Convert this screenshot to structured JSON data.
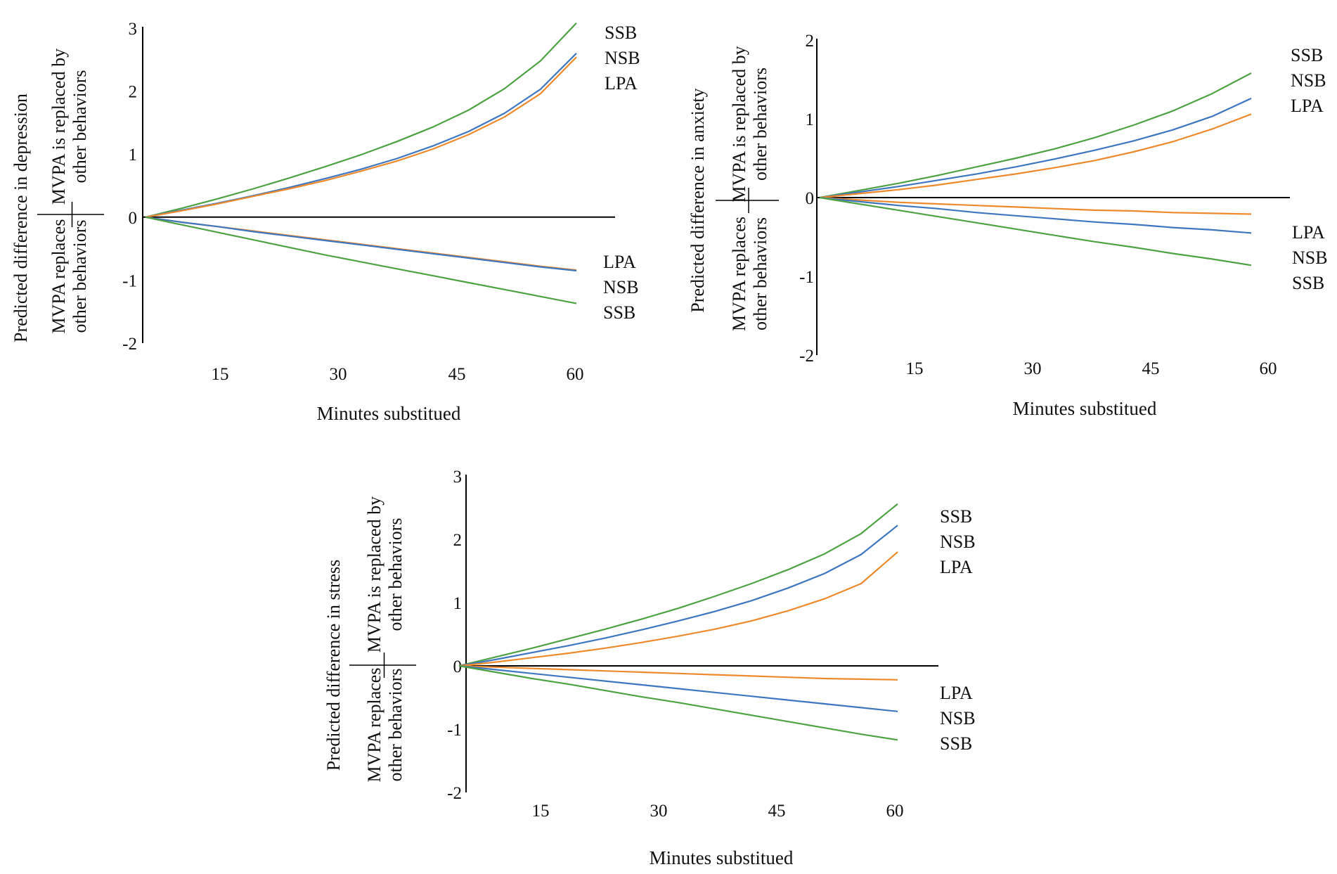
{
  "colors": {
    "SSB": "#4ea244",
    "NSB": "#3f76c0",
    "LPA": "#ee8a2e",
    "axis": "#000000"
  },
  "chart_data": [
    {
      "id": "depression",
      "type": "line",
      "ylabel": "Predicted difference in depression",
      "ylabel_upper": [
        "MVPA is replaced by",
        "other behaviors"
      ],
      "ylabel_lower": [
        "MVPA replaces",
        "other behaviors"
      ],
      "xlabel": "Minutes substitued",
      "ylim": [
        -2,
        3
      ],
      "xlim": [
        0,
        65
      ],
      "yticks": [
        "3",
        "2",
        "1",
        "0",
        "-1",
        "-2"
      ],
      "xticks": [
        "15",
        "30",
        "45",
        "60"
      ],
      "x": [
        0,
        5,
        10,
        15,
        20,
        25,
        30,
        35,
        40,
        45,
        50,
        55,
        60
      ],
      "series": [
        {
          "name": "SSB",
          "direction": "replaced",
          "values": [
            0,
            0.14,
            0.29,
            0.45,
            0.62,
            0.8,
            0.99,
            1.2,
            1.43,
            1.7,
            2.04,
            2.48,
            3.08
          ]
        },
        {
          "name": "NSB",
          "direction": "replaced",
          "values": [
            0,
            0.11,
            0.22,
            0.34,
            0.47,
            0.61,
            0.76,
            0.93,
            1.13,
            1.36,
            1.65,
            2.03,
            2.6
          ]
        },
        {
          "name": "LPA",
          "direction": "replaced",
          "values": [
            0,
            0.1,
            0.21,
            0.33,
            0.45,
            0.58,
            0.73,
            0.89,
            1.08,
            1.31,
            1.59,
            1.96,
            2.54
          ]
        },
        {
          "name": "LPA",
          "direction": "replaces",
          "values": [
            0,
            -0.08,
            -0.15,
            -0.22,
            -0.29,
            -0.36,
            -0.43,
            -0.5,
            -0.57,
            -0.64,
            -0.71,
            -0.78,
            -0.84
          ]
        },
        {
          "name": "NSB",
          "direction": "replaces",
          "values": [
            0,
            -0.08,
            -0.15,
            -0.23,
            -0.3,
            -0.37,
            -0.44,
            -0.51,
            -0.58,
            -0.65,
            -0.72,
            -0.79,
            -0.85
          ]
        },
        {
          "name": "SSB",
          "direction": "replaces",
          "values": [
            0,
            -0.12,
            -0.24,
            -0.36,
            -0.48,
            -0.6,
            -0.71,
            -0.82,
            -0.93,
            -1.04,
            -1.15,
            -1.26,
            -1.37
          ]
        }
      ],
      "labels_upper": [
        "SSB",
        "NSB",
        "LPA"
      ],
      "labels_lower": [
        "LPA",
        "NSB",
        "SSB"
      ]
    },
    {
      "id": "anxiety",
      "type": "line",
      "ylabel": "Predicted difference in anxiety",
      "ylabel_upper": [
        "MVPA is replaced by",
        "other behaviors"
      ],
      "ylabel_lower": [
        "MVPA replaces",
        "other behaviors"
      ],
      "xlabel": "Minutes substitued",
      "ylim": [
        -2,
        2
      ],
      "xlim": [
        0,
        60
      ],
      "yticks": [
        "2",
        "1",
        "0",
        "-1",
        "-2"
      ],
      "xticks": [
        "15",
        "30",
        "45",
        "60"
      ],
      "x": [
        0,
        5,
        10,
        15,
        20,
        25,
        30,
        35,
        40,
        45,
        50,
        55,
        55
      ],
      "series": [
        {
          "name": "SSB",
          "direction": "replaced",
          "values": [
            0,
            0.09,
            0.18,
            0.28,
            0.39,
            0.5,
            0.62,
            0.76,
            0.92,
            1.1,
            1.32,
            1.58,
            1.58
          ]
        },
        {
          "name": "NSB",
          "direction": "replaced",
          "values": [
            0,
            0.07,
            0.14,
            0.22,
            0.3,
            0.39,
            0.49,
            0.6,
            0.72,
            0.86,
            1.03,
            1.26,
            1.26
          ]
        },
        {
          "name": "LPA",
          "direction": "replaced",
          "values": [
            0,
            0.05,
            0.1,
            0.16,
            0.23,
            0.3,
            0.38,
            0.47,
            0.58,
            0.71,
            0.87,
            1.06,
            1.06
          ]
        },
        {
          "name": "LPA",
          "direction": "replaces",
          "values": [
            0,
            -0.03,
            -0.06,
            -0.08,
            -0.1,
            -0.12,
            -0.14,
            -0.16,
            -0.17,
            -0.19,
            -0.2,
            -0.21,
            -0.21
          ]
        },
        {
          "name": "NSB",
          "direction": "replaces",
          "values": [
            0,
            -0.05,
            -0.1,
            -0.14,
            -0.19,
            -0.23,
            -0.27,
            -0.31,
            -0.34,
            -0.38,
            -0.41,
            -0.45,
            -0.45
          ]
        },
        {
          "name": "SSB",
          "direction": "replaces",
          "values": [
            0,
            -0.08,
            -0.16,
            -0.24,
            -0.32,
            -0.4,
            -0.48,
            -0.56,
            -0.63,
            -0.71,
            -0.78,
            -0.86,
            -0.86
          ]
        }
      ],
      "labels_upper": [
        "SSB",
        "NSB",
        "LPA"
      ],
      "labels_lower": [
        "LPA",
        "NSB",
        "SSB"
      ]
    },
    {
      "id": "stress",
      "type": "line",
      "ylabel": "Predicted difference in stress",
      "ylabel_upper": [
        "MVPA is replaced by",
        "other behaviors"
      ],
      "ylabel_lower": [
        "MVPA replaces",
        "other behaviors"
      ],
      "xlabel": "Minutes substitued",
      "ylim": [
        -2,
        3
      ],
      "xlim": [
        0,
        60
      ],
      "yticks": [
        "3",
        "2",
        "1",
        "0",
        "-1",
        "-2"
      ],
      "xticks": [
        "15",
        "30",
        "45",
        "60"
      ],
      "x": [
        0,
        5,
        10,
        15,
        20,
        25,
        30,
        35,
        40,
        45,
        50,
        55,
        60
      ],
      "series": [
        {
          "name": "SSB",
          "direction": "replaced",
          "values": [
            0,
            0.14,
            0.28,
            0.43,
            0.58,
            0.74,
            0.91,
            1.1,
            1.3,
            1.52,
            1.77,
            2.09,
            2.56
          ]
        },
        {
          "name": "NSB",
          "direction": "replaced",
          "values": [
            0,
            0.1,
            0.21,
            0.32,
            0.44,
            0.57,
            0.71,
            0.86,
            1.03,
            1.23,
            1.46,
            1.76,
            2.22
          ]
        },
        {
          "name": "LPA",
          "direction": "replaced",
          "values": [
            0,
            0.06,
            0.13,
            0.2,
            0.28,
            0.37,
            0.47,
            0.58,
            0.71,
            0.87,
            1.06,
            1.3,
            1.8
          ]
        },
        {
          "name": "LPA",
          "direction": "replaces",
          "values": [
            0,
            -0.02,
            -0.04,
            -0.06,
            -0.08,
            -0.1,
            -0.12,
            -0.14,
            -0.16,
            -0.18,
            -0.2,
            -0.21,
            -0.22
          ]
        },
        {
          "name": "NSB",
          "direction": "replaces",
          "values": [
            0,
            -0.06,
            -0.12,
            -0.18,
            -0.24,
            -0.3,
            -0.36,
            -0.42,
            -0.48,
            -0.54,
            -0.6,
            -0.66,
            -0.72
          ]
        },
        {
          "name": "SSB",
          "direction": "replaces",
          "values": [
            0,
            -0.1,
            -0.2,
            -0.29,
            -0.39,
            -0.49,
            -0.58,
            -0.68,
            -0.78,
            -0.88,
            -0.98,
            -1.08,
            -1.17
          ]
        }
      ],
      "labels_upper": [
        "SSB",
        "NSB",
        "LPA"
      ],
      "labels_lower": [
        "LPA",
        "NSB",
        "SSB"
      ]
    }
  ]
}
